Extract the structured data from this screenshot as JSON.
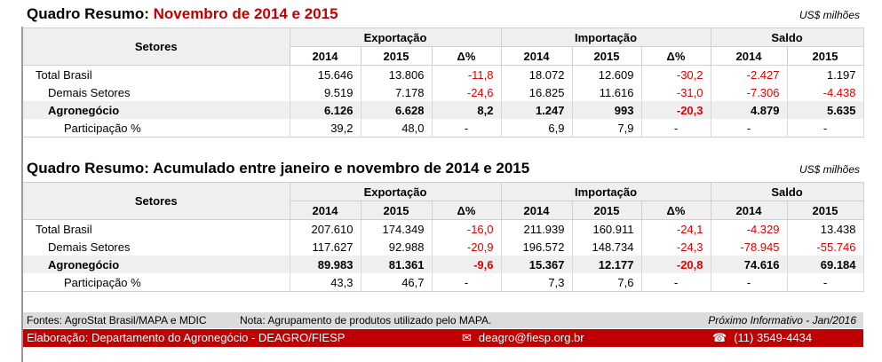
{
  "unit_label": "US$ milhões",
  "table1": {
    "title_prefix": "Quadro Resumo: ",
    "title_highlight": "Novembro de 2014 e 2015",
    "header": {
      "setores": "Setores",
      "exportacao": "Exportação",
      "importacao": "Importação",
      "saldo": "Saldo",
      "y2014": "2014",
      "y2015": "2015",
      "delta": "Δ%"
    },
    "rows": [
      {
        "label": "Total Brasil",
        "exp2014": "15.646",
        "exp2015": "13.806",
        "expd": "-11,8",
        "imp2014": "18.072",
        "imp2015": "12.609",
        "impd": "-30,2",
        "sal2014": "-2.427",
        "sal2015": "1.197"
      },
      {
        "label": "Demais Setores",
        "exp2014": "9.519",
        "exp2015": "7.178",
        "expd": "-24,6",
        "imp2014": "16.825",
        "imp2015": "11.616",
        "impd": "-31,0",
        "sal2014": "-7.306",
        "sal2015": "-4.438"
      },
      {
        "label": "Agronegócio",
        "exp2014": "6.126",
        "exp2015": "6.628",
        "expd": "8,2",
        "imp2014": "1.247",
        "imp2015": "993",
        "impd": "-20,3",
        "sal2014": "4.879",
        "sal2015": "5.635"
      },
      {
        "label": "Participação %",
        "exp2014": "39,2",
        "exp2015": "48,0",
        "expd": "-",
        "imp2014": "6,9",
        "imp2015": "7,9",
        "impd": "-",
        "sal2014": "-",
        "sal2015": "-"
      }
    ]
  },
  "table2": {
    "title": "Quadro Resumo: Acumulado entre janeiro e novembro de 2014 e 2015",
    "header": {
      "setores": "Setores",
      "exportacao": "Exportação",
      "importacao": "Importação",
      "saldo": "Saldo",
      "y2014": "2014",
      "y2015": "2015",
      "delta": "Δ%"
    },
    "rows": [
      {
        "label": "Total Brasil",
        "exp2014": "207.610",
        "exp2015": "174.349",
        "expd": "-16,0",
        "imp2014": "211.939",
        "imp2015": "160.911",
        "impd": "-24,1",
        "sal2014": "-4.329",
        "sal2015": "13.438"
      },
      {
        "label": "Demais Setores",
        "exp2014": "117.627",
        "exp2015": "92.988",
        "expd": "-20,9",
        "imp2014": "196.572",
        "imp2015": "148.734",
        "impd": "-24,3",
        "sal2014": "-78.945",
        "sal2015": "-55.746"
      },
      {
        "label": "Agronegócio",
        "exp2014": "89.983",
        "exp2015": "81.361",
        "expd": "-9,6",
        "imp2014": "15.367",
        "imp2015": "12.177",
        "impd": "-20,8",
        "sal2014": "74.616",
        "sal2015": "69.184"
      },
      {
        "label": "Participação %",
        "exp2014": "43,3",
        "exp2015": "46,7",
        "expd": "-",
        "imp2014": "7,3",
        "imp2015": "7,6",
        "impd": "-",
        "sal2014": "-",
        "sal2015": "-"
      }
    ]
  },
  "footer": {
    "fontes": "Fontes: AgroStat Brasil/MAPA e MDIC",
    "nota": "Nota: Agrupamento de produtos utilizado pelo MAPA.",
    "proximo": "Próximo Informativo - Jan/2016",
    "elaboracao": "Elaboração: Departamento do Agronegócio - DEAGRO/FIESP",
    "email": "deagro@fiesp.org.br",
    "telefone": "(11) 3549-4434",
    "email_icon": "envelope-icon",
    "phone_icon": "phone-icon"
  },
  "colors": {
    "negative": "#e00000",
    "title_highlight": "#c00000",
    "footer_bar": "#c00000",
    "header_bg": "#efefef"
  }
}
